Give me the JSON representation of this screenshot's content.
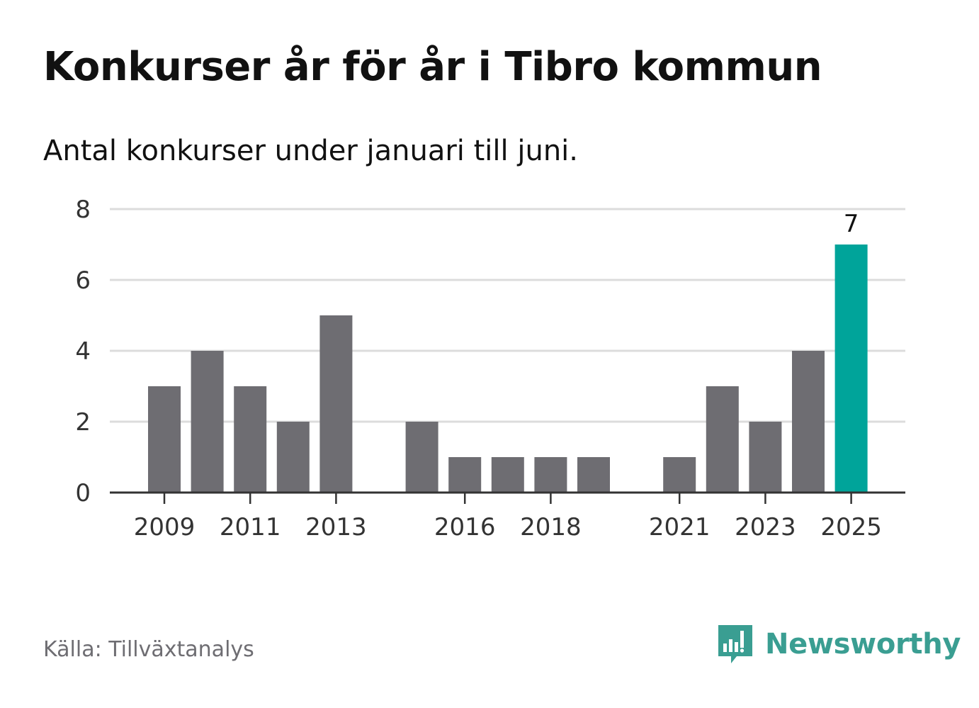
{
  "title": "Konkurser år för år i Tibro kommun",
  "subtitle": "Antal konkurser under januari till juni.",
  "source": "Källa: Tillväxtanalys",
  "brand": {
    "name": "Newsworthy",
    "logo_icon": "bar-chart-speech-bubble-icon"
  },
  "colors": {
    "bar": "#6e6d72",
    "highlight": "#00a49a",
    "grid": "#dcdcdc",
    "axis": "#333333",
    "brand": "#3a9e92"
  },
  "chart_data": {
    "type": "bar",
    "categories": [
      "2009",
      "2010",
      "2011",
      "2012",
      "2013",
      "2014",
      "2015",
      "2016",
      "2017",
      "2018",
      "2019",
      "2020",
      "2021",
      "2022",
      "2023",
      "2024",
      "2025"
    ],
    "values": [
      3,
      4,
      3,
      2,
      5,
      0,
      2,
      1,
      1,
      1,
      1,
      0,
      1,
      3,
      2,
      4,
      7
    ],
    "x_tick_labels": [
      "2009",
      "2011",
      "2013",
      "2016",
      "2018",
      "2021",
      "2023",
      "2025"
    ],
    "y_ticks": [
      0,
      2,
      4,
      6,
      8
    ],
    "ylim": [
      0,
      8
    ],
    "highlight_category": "2025",
    "data_labels": [
      {
        "category": "2025",
        "text": "7"
      }
    ],
    "grid": true,
    "legend": "none"
  }
}
